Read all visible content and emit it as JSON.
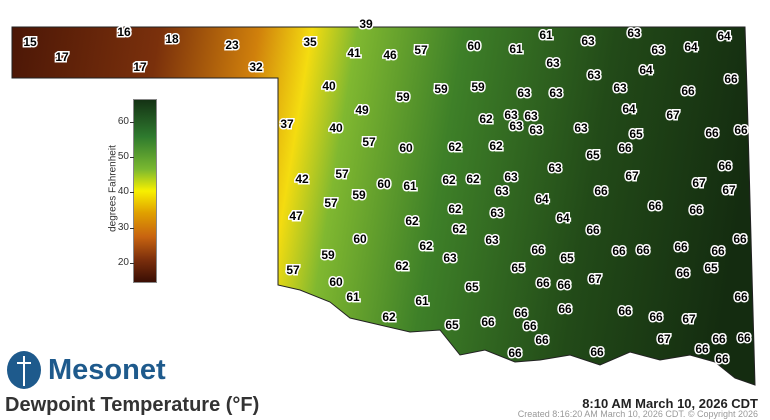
{
  "title": "Dewpoint Temperature (°F)",
  "valid_time": "8:10 AM March 10, 2026 CDT",
  "created": "Created 8:16:20 AM March 10, 2026 CDT. © Copyright 2026",
  "logo": {
    "text": "Mesonet",
    "icon": "mesonet-tower-logo-icon"
  },
  "legend": {
    "title": "degrees Fahrenheit",
    "ticks": [
      "60",
      "50",
      "40",
      "30",
      "20"
    ],
    "range": [
      15,
      67
    ],
    "colors": {
      "low": "#3a0e04",
      "mid": "#f8f000",
      "high": "#143214"
    }
  },
  "stations": [
    15,
    17,
    16,
    18,
    17,
    23,
    32,
    35,
    39,
    41,
    46,
    57,
    60,
    61,
    61,
    63,
    63,
    63,
    64,
    64,
    63,
    63,
    64,
    66,
    40,
    59,
    59,
    59,
    63,
    63,
    63,
    66,
    49,
    63,
    63,
    62,
    63,
    63,
    63,
    64,
    67,
    37,
    40,
    65,
    66,
    66,
    57,
    60,
    62,
    62,
    65,
    66,
    66,
    42,
    57,
    60,
    61,
    62,
    62,
    63,
    63,
    67,
    67,
    67,
    63,
    59,
    57,
    64,
    66,
    66,
    66,
    62,
    63,
    47,
    62,
    64,
    66,
    62,
    60,
    62,
    63,
    66,
    66,
    66,
    66,
    66,
    66,
    59,
    63,
    65,
    57,
    62,
    65,
    67,
    66,
    65,
    60,
    66,
    66,
    61,
    65,
    61,
    66,
    62,
    66,
    66,
    66,
    67,
    65,
    66,
    66,
    66,
    66,
    67,
    66,
    66,
    66,
    66,
    66,
    66
  ]
}
